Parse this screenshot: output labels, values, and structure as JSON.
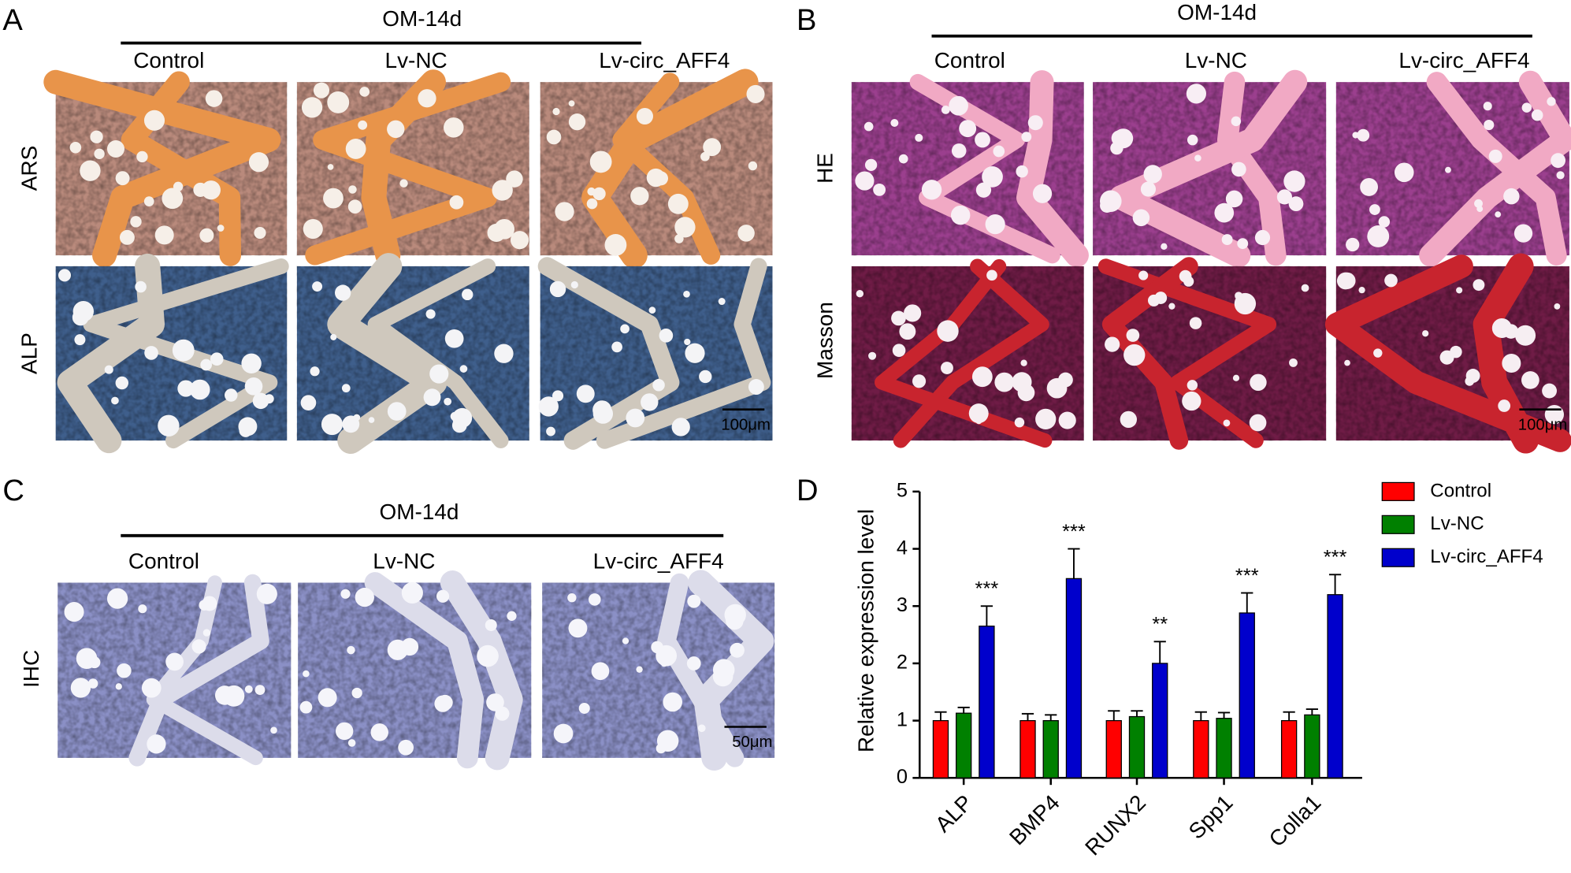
{
  "panels": [
    {
      "letter": "A",
      "header": "OM-14d",
      "columns": [
        "Control",
        "Lv-NC",
        "Lv-circ_AFF4"
      ],
      "rows": [
        "ARS",
        "ALP"
      ],
      "scale_bar": "100μm"
    },
    {
      "letter": "B",
      "header": "OM-14d",
      "columns": [
        "Control",
        "Lv-NC",
        "Lv-circ_AFF4"
      ],
      "rows": [
        "HE",
        "Masson"
      ],
      "scale_bar": "100μm"
    },
    {
      "letter": "C",
      "header": "OM-14d",
      "columns": [
        "Control",
        "Lv-NC",
        "Lv-circ_AFF4"
      ],
      "rows": [
        "IHC"
      ],
      "scale_bar": "50μm"
    }
  ],
  "chart_data": {
    "type": "bar",
    "panel_label": "D",
    "y_label": "Relative expression level",
    "categories": [
      "ALP",
      "BMP4",
      "RUNX2",
      "Spp1",
      "Colla1"
    ],
    "series": [
      {
        "name": "Control",
        "color": "#ff0000",
        "values": [
          1.0,
          1.0,
          1.0,
          1.0,
          1.0
        ],
        "errors": [
          0.15,
          0.12,
          0.17,
          0.15,
          0.15
        ]
      },
      {
        "name": "Lv-NC",
        "color": "#008000",
        "values": [
          1.13,
          1.0,
          1.07,
          1.04,
          1.1
        ],
        "errors": [
          0.1,
          0.1,
          0.1,
          0.1,
          0.1
        ]
      },
      {
        "name": "Lv-circ_AFF4",
        "color": "#0000cc",
        "values": [
          2.65,
          3.48,
          2.0,
          2.88,
          3.2
        ],
        "errors": [
          0.35,
          0.52,
          0.38,
          0.35,
          0.35
        ]
      }
    ],
    "annotations": [
      "***",
      "***",
      "**",
      "***",
      "***"
    ],
    "ylim": [
      0,
      5
    ],
    "yticks": [
      0,
      1,
      2,
      3,
      4,
      5
    ],
    "legend": "upper right"
  }
}
